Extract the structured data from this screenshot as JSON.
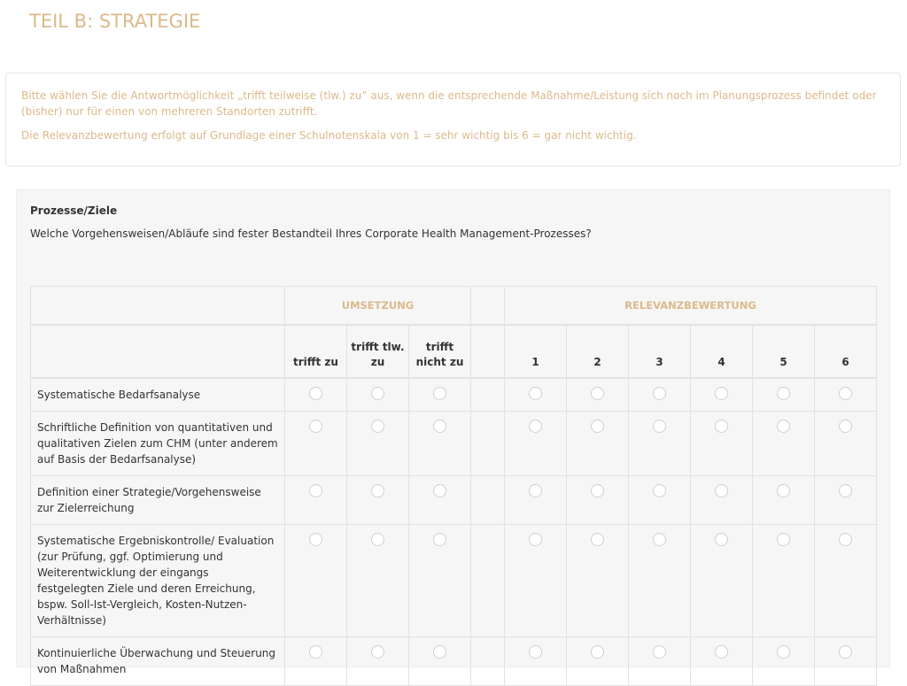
{
  "title": "TEIL B: STRATEGIE",
  "info": [
    "Bitte wählen Sie die Antwortmöglichkeit „trifft teilweise (tlw.) zu“ aus, wenn die entsprechende Maßnahme/Leistung sich noch im Planungsprozess befindet oder (bisher) nur für einen von mehreren Standorten zutrifft.",
    "Die Relevanzbewertung erfolgt auf Grundlage einer Schulnotenskala von 1 = sehr wichtig bis 6 = gar nicht wichtig."
  ],
  "question": {
    "title": "Prozesse/Ziele",
    "text": "Welche Vorgehensweisen/Abläufe sind fester Bestandteil Ihres Corporate Health Management-Prozesses?"
  },
  "groups": {
    "umsetzung": "UMSETZUNG",
    "relevanz": "RELEVANZBEWERTUNG"
  },
  "umsetzung_cols": [
    "trifft zu",
    "trifft tlw. zu",
    "trifft nicht zu"
  ],
  "relevanz_cols": [
    "1",
    "2",
    "3",
    "4",
    "5",
    "6"
  ],
  "rows": [
    "Systematische Bedarfsanalyse",
    "Schriftliche Definition von quantitativen und qualitativen Zielen zum CHM (unter anderem auf Basis der Bedarfsanalyse)",
    "Definition einer Strategie/Vorgehensweise zur Zielerreichung",
    "Systematische Ergebniskontrolle/ Evaluation (zur Prüfung, ggf. Optimierung und Weiterentwicklung der eingangs festgelegten Ziele und deren Erreichung, bspw. Soll-Ist-Vergleich, Kosten-Nutzen-Verhältnisse)",
    "Kontinuierliche Überwachung und Steuerung von Maßnahmen"
  ]
}
